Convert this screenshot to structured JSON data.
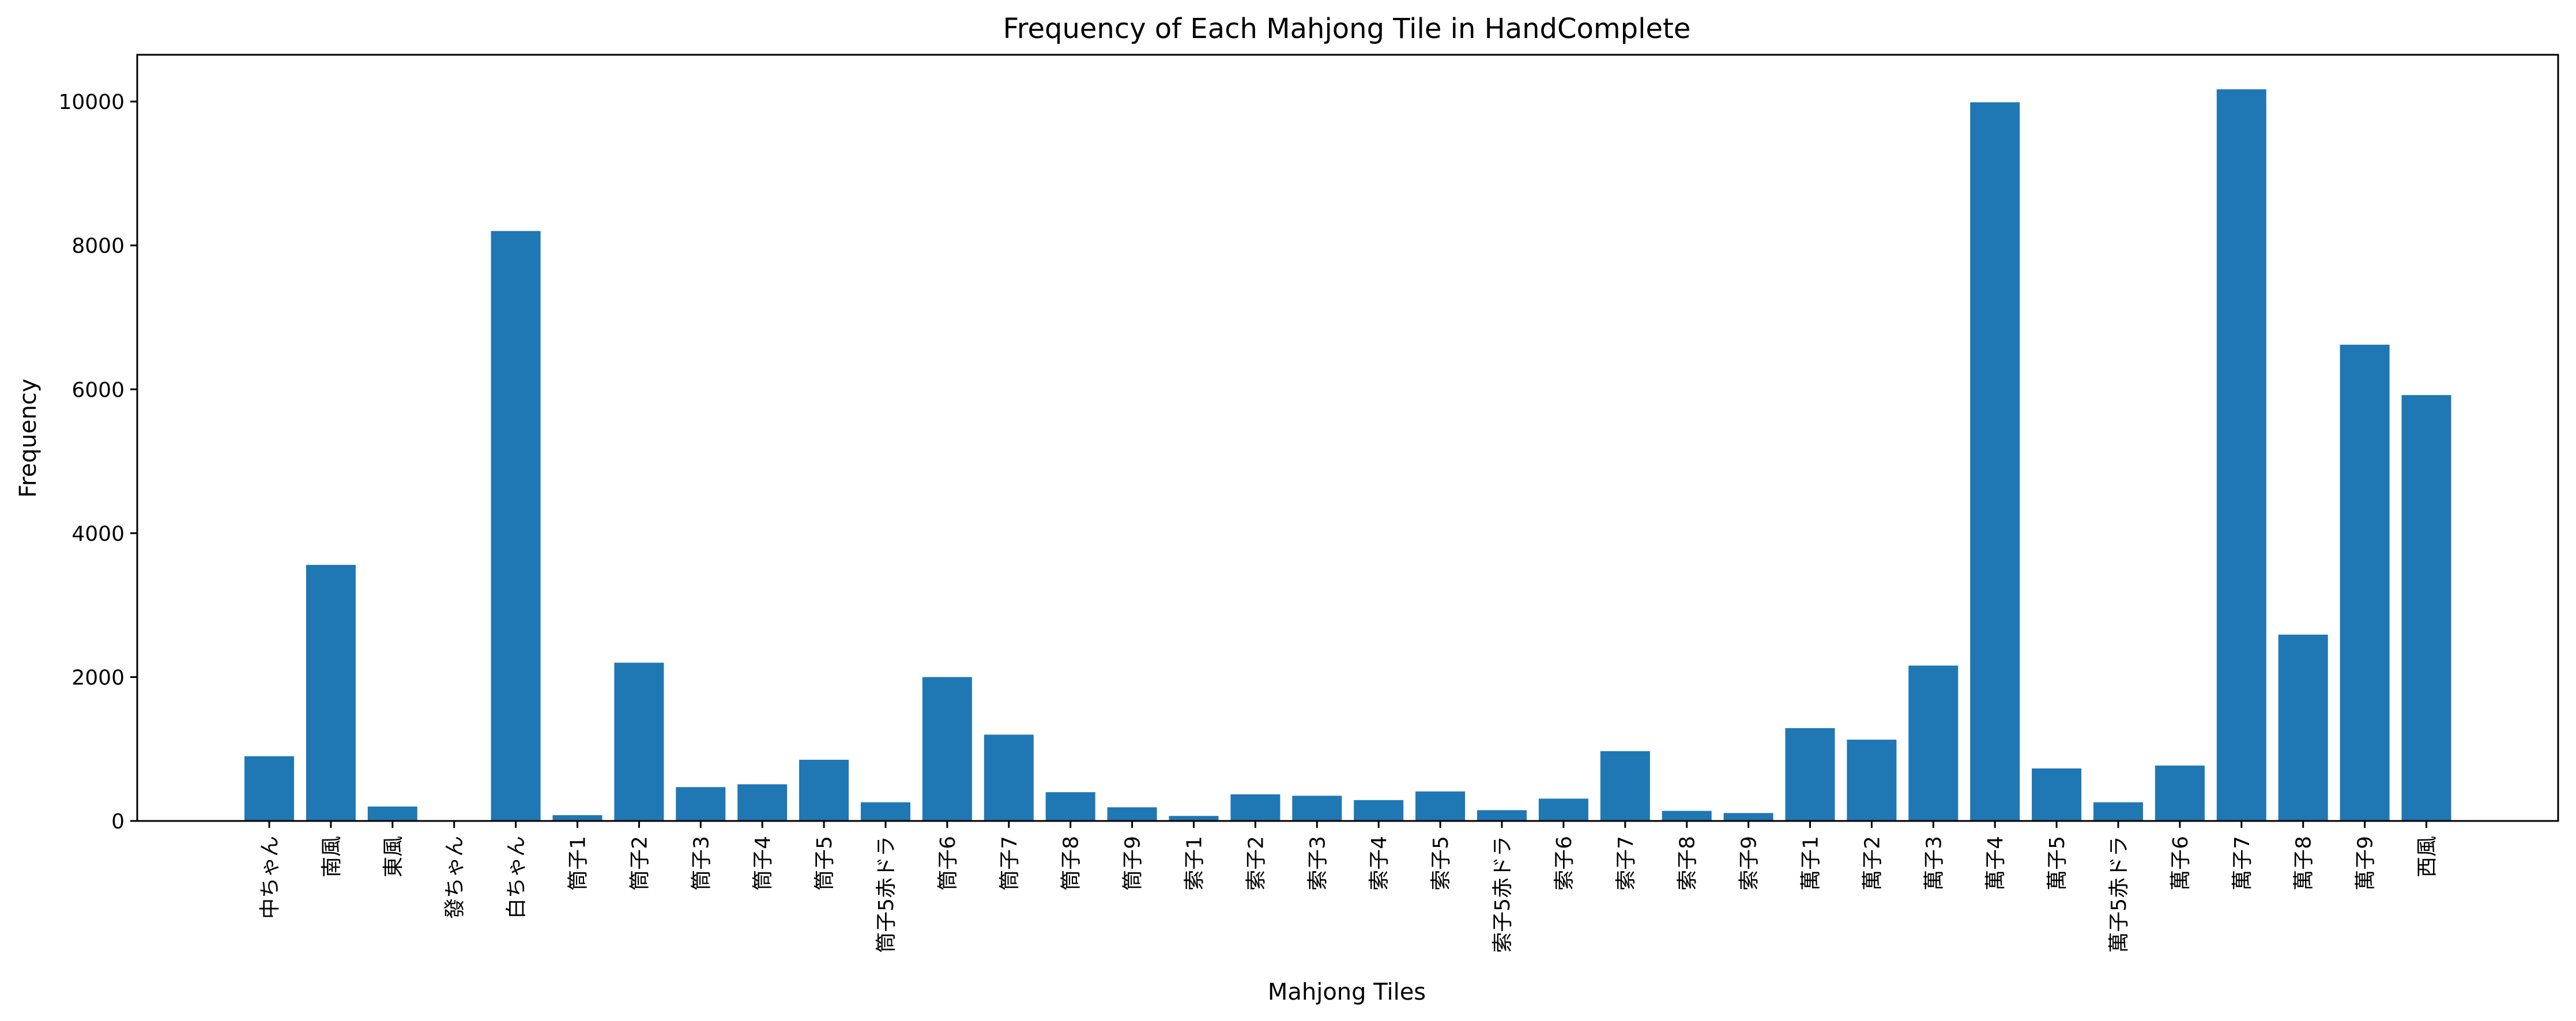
{
  "chart_data": {
    "type": "bar",
    "title": "Frequency of Each Mahjong Tile in HandComplete",
    "xlabel": "Mahjong Tiles",
    "ylabel": "Frequency",
    "ylim": [
      0,
      10650
    ],
    "yticks": [
      0,
      2000,
      4000,
      6000,
      8000,
      10000
    ],
    "grid": false,
    "color": "#1f77b4",
    "categories": [
      "中ちゃん",
      "南風",
      "東風",
      "發ちゃん",
      "白ちゃん",
      "筒子1",
      "筒子2",
      "筒子3",
      "筒子4",
      "筒子5",
      "筒子5赤ドラ",
      "筒子6",
      "筒子7",
      "筒子8",
      "筒子9",
      "索子1",
      "索子2",
      "索子3",
      "索子4",
      "索子5",
      "索子5赤ドラ",
      "索子6",
      "索子7",
      "索子8",
      "索子9",
      "萬子1",
      "萬子2",
      "萬子3",
      "萬子4",
      "萬子5",
      "萬子5赤ドラ",
      "萬子6",
      "萬子7",
      "萬子8",
      "萬子9",
      "西風"
    ],
    "values": [
      900,
      3560,
      200,
      0,
      8200,
      80,
      2200,
      470,
      510,
      850,
      260,
      2000,
      1200,
      400,
      190,
      70,
      370,
      350,
      290,
      410,
      150,
      310,
      970,
      140,
      110,
      1290,
      1130,
      2160,
      9990,
      730,
      260,
      770,
      10170,
      2590,
      6620,
      5920
    ]
  }
}
